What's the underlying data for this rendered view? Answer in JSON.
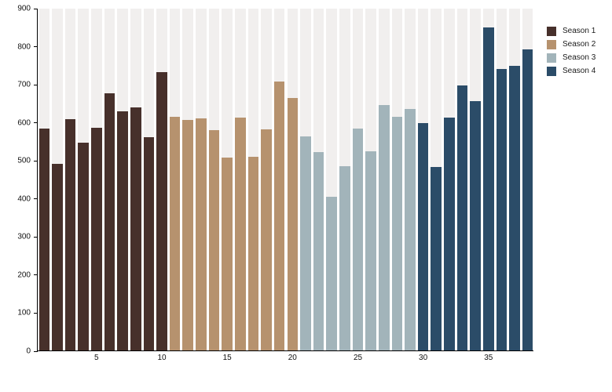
{
  "chart_data": {
    "type": "bar",
    "title": "",
    "xlabel": "",
    "ylabel": "",
    "x_unit": "episode",
    "ylim": [
      0,
      900
    ],
    "y_ticks": [
      0,
      100,
      200,
      300,
      400,
      500,
      600,
      700,
      800,
      900
    ],
    "x_ticks": [
      5,
      10,
      15,
      20,
      25,
      30,
      35
    ],
    "grid": "off",
    "legend_position": "top-right",
    "background_band_color": "#F1EFEE",
    "axis_color": "#000000",
    "tick_label_color": "#111111",
    "series": [
      {
        "name": "Season 1",
        "color": "#47302B",
        "values": [
          582,
          491,
          607,
          545,
          585,
          675,
          628,
          639,
          560,
          732
        ]
      },
      {
        "name": "Season 2",
        "color": "#B6926E",
        "values": [
          613,
          605,
          609,
          579,
          507,
          612,
          508,
          580,
          707,
          663
        ]
      },
      {
        "name": "Season 3",
        "color": "#A2B4BA",
        "values": [
          563,
          521,
          403,
          484,
          583,
          524,
          645,
          614,
          635
        ]
      },
      {
        "name": "Season 4",
        "color": "#2B4C68",
        "values": [
          598,
          483,
          611,
          696,
          654,
          848,
          739,
          748,
          791
        ]
      }
    ]
  }
}
